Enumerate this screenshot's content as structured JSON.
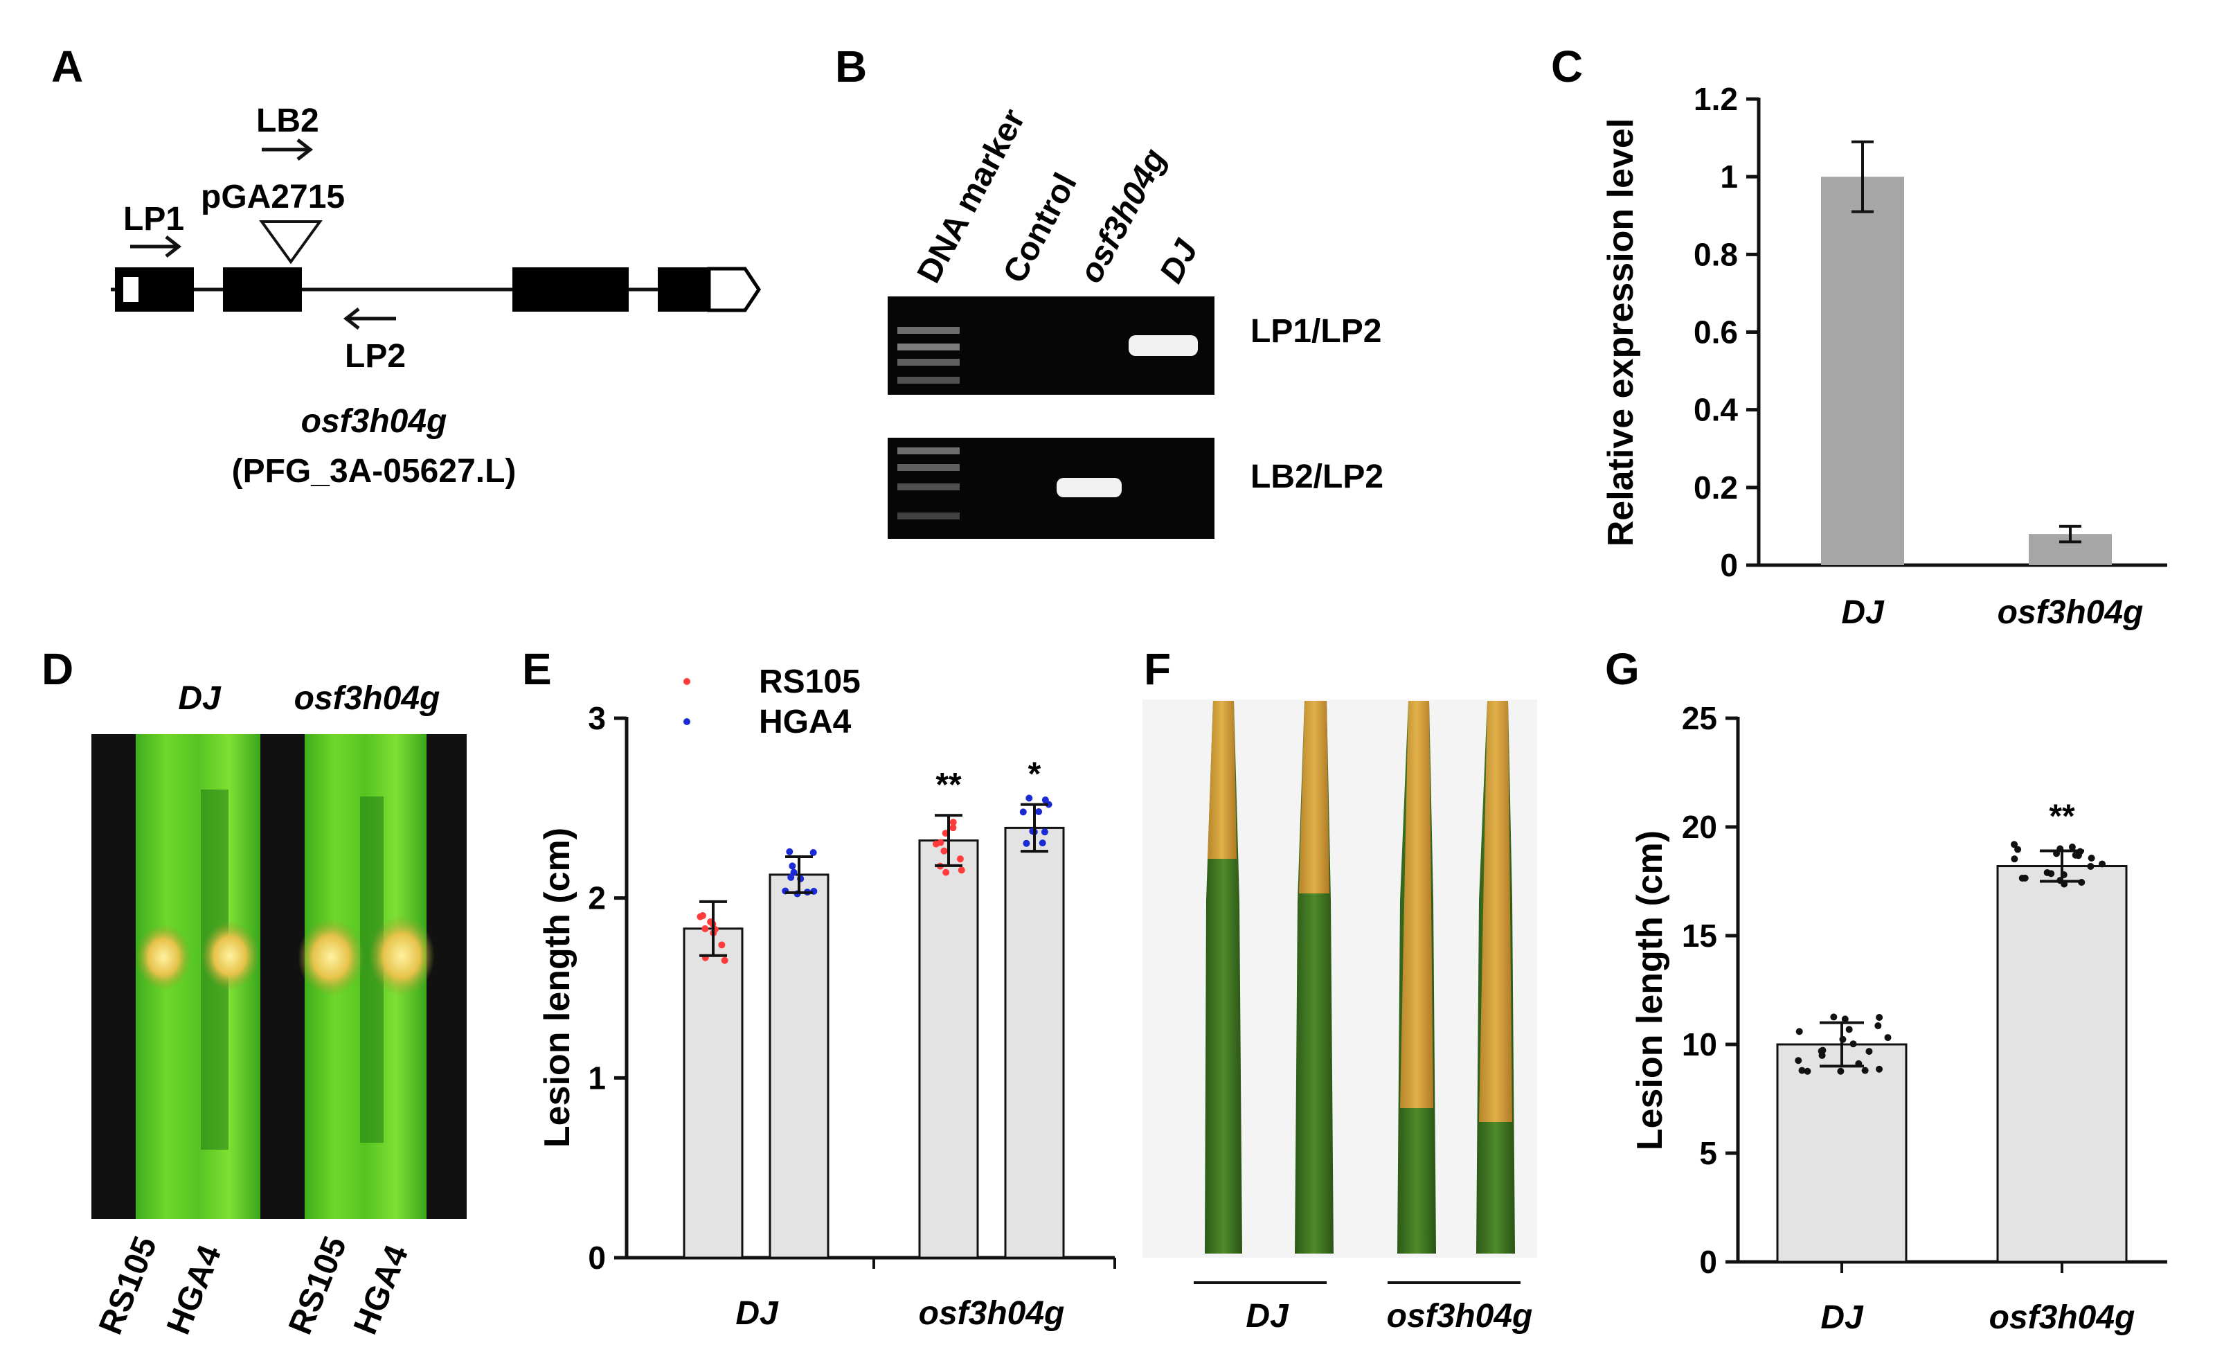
{
  "panels": {
    "A": {
      "letter": "A",
      "lb2": "LB2",
      "lp1": "LP1",
      "lp2": "LP2",
      "vector": "pGA2715",
      "gene": "osf3h04g",
      "line": "(PFG_3A-05627.L)"
    },
    "B": {
      "letter": "B",
      "lanes": [
        "DNA marker",
        "Control",
        "osf3h04g",
        "DJ"
      ],
      "rows": [
        "LP1/LP2",
        "LB2/LP2"
      ]
    },
    "C": {
      "letter": "C"
    },
    "D": {
      "letter": "D",
      "genotypes": [
        "DJ",
        "osf3h04g"
      ],
      "strains": [
        "RS105",
        "HGA4",
        "RS105",
        "HGA4"
      ]
    },
    "E": {
      "letter": "E"
    },
    "F": {
      "letter": "F",
      "groups": [
        "DJ",
        "osf3h04g"
      ]
    },
    "G": {
      "letter": "G"
    }
  },
  "colors": {
    "bar_c": "#a6a6a6",
    "bar_light": "#e3e3e3",
    "rs105": "#ff3b3b",
    "hga4": "#1a2bd6"
  },
  "chart_data": [
    {
      "id": "C",
      "type": "bar",
      "categories": [
        "DJ",
        "osf3h04g"
      ],
      "values": [
        1.0,
        0.08
      ],
      "errors": [
        0.09,
        0.02
      ],
      "ylabel": "Relative expression level",
      "ylim": [
        0,
        1.2
      ],
      "yticks": [
        "0",
        "0.2",
        "0.4",
        "0.6",
        "0.8",
        "1",
        "1.2"
      ]
    },
    {
      "id": "E",
      "type": "bar",
      "categories": [
        "DJ",
        "osf3h04g"
      ],
      "series": [
        {
          "name": "RS105",
          "values": [
            1.83,
            2.32
          ],
          "errors": [
            0.15,
            0.14
          ]
        },
        {
          "name": "HGA4",
          "values": [
            2.13,
            2.39
          ],
          "errors": [
            0.1,
            0.13
          ]
        }
      ],
      "significance": [
        "",
        "",
        "**",
        "*"
      ],
      "ylabel": "Lesion length (cm)",
      "ylim": [
        0,
        3
      ],
      "yticks": [
        "0",
        "1",
        "2",
        "3"
      ]
    },
    {
      "id": "G",
      "type": "bar",
      "categories": [
        "DJ",
        "osf3h04g"
      ],
      "values": [
        10.0,
        18.2
      ],
      "errors": [
        1.0,
        0.7
      ],
      "significance": [
        "",
        "**"
      ],
      "ylabel": "Lesion length (cm)",
      "ylim": [
        0,
        25
      ],
      "yticks": [
        "0",
        "5",
        "10",
        "15",
        "20",
        "25"
      ]
    }
  ]
}
